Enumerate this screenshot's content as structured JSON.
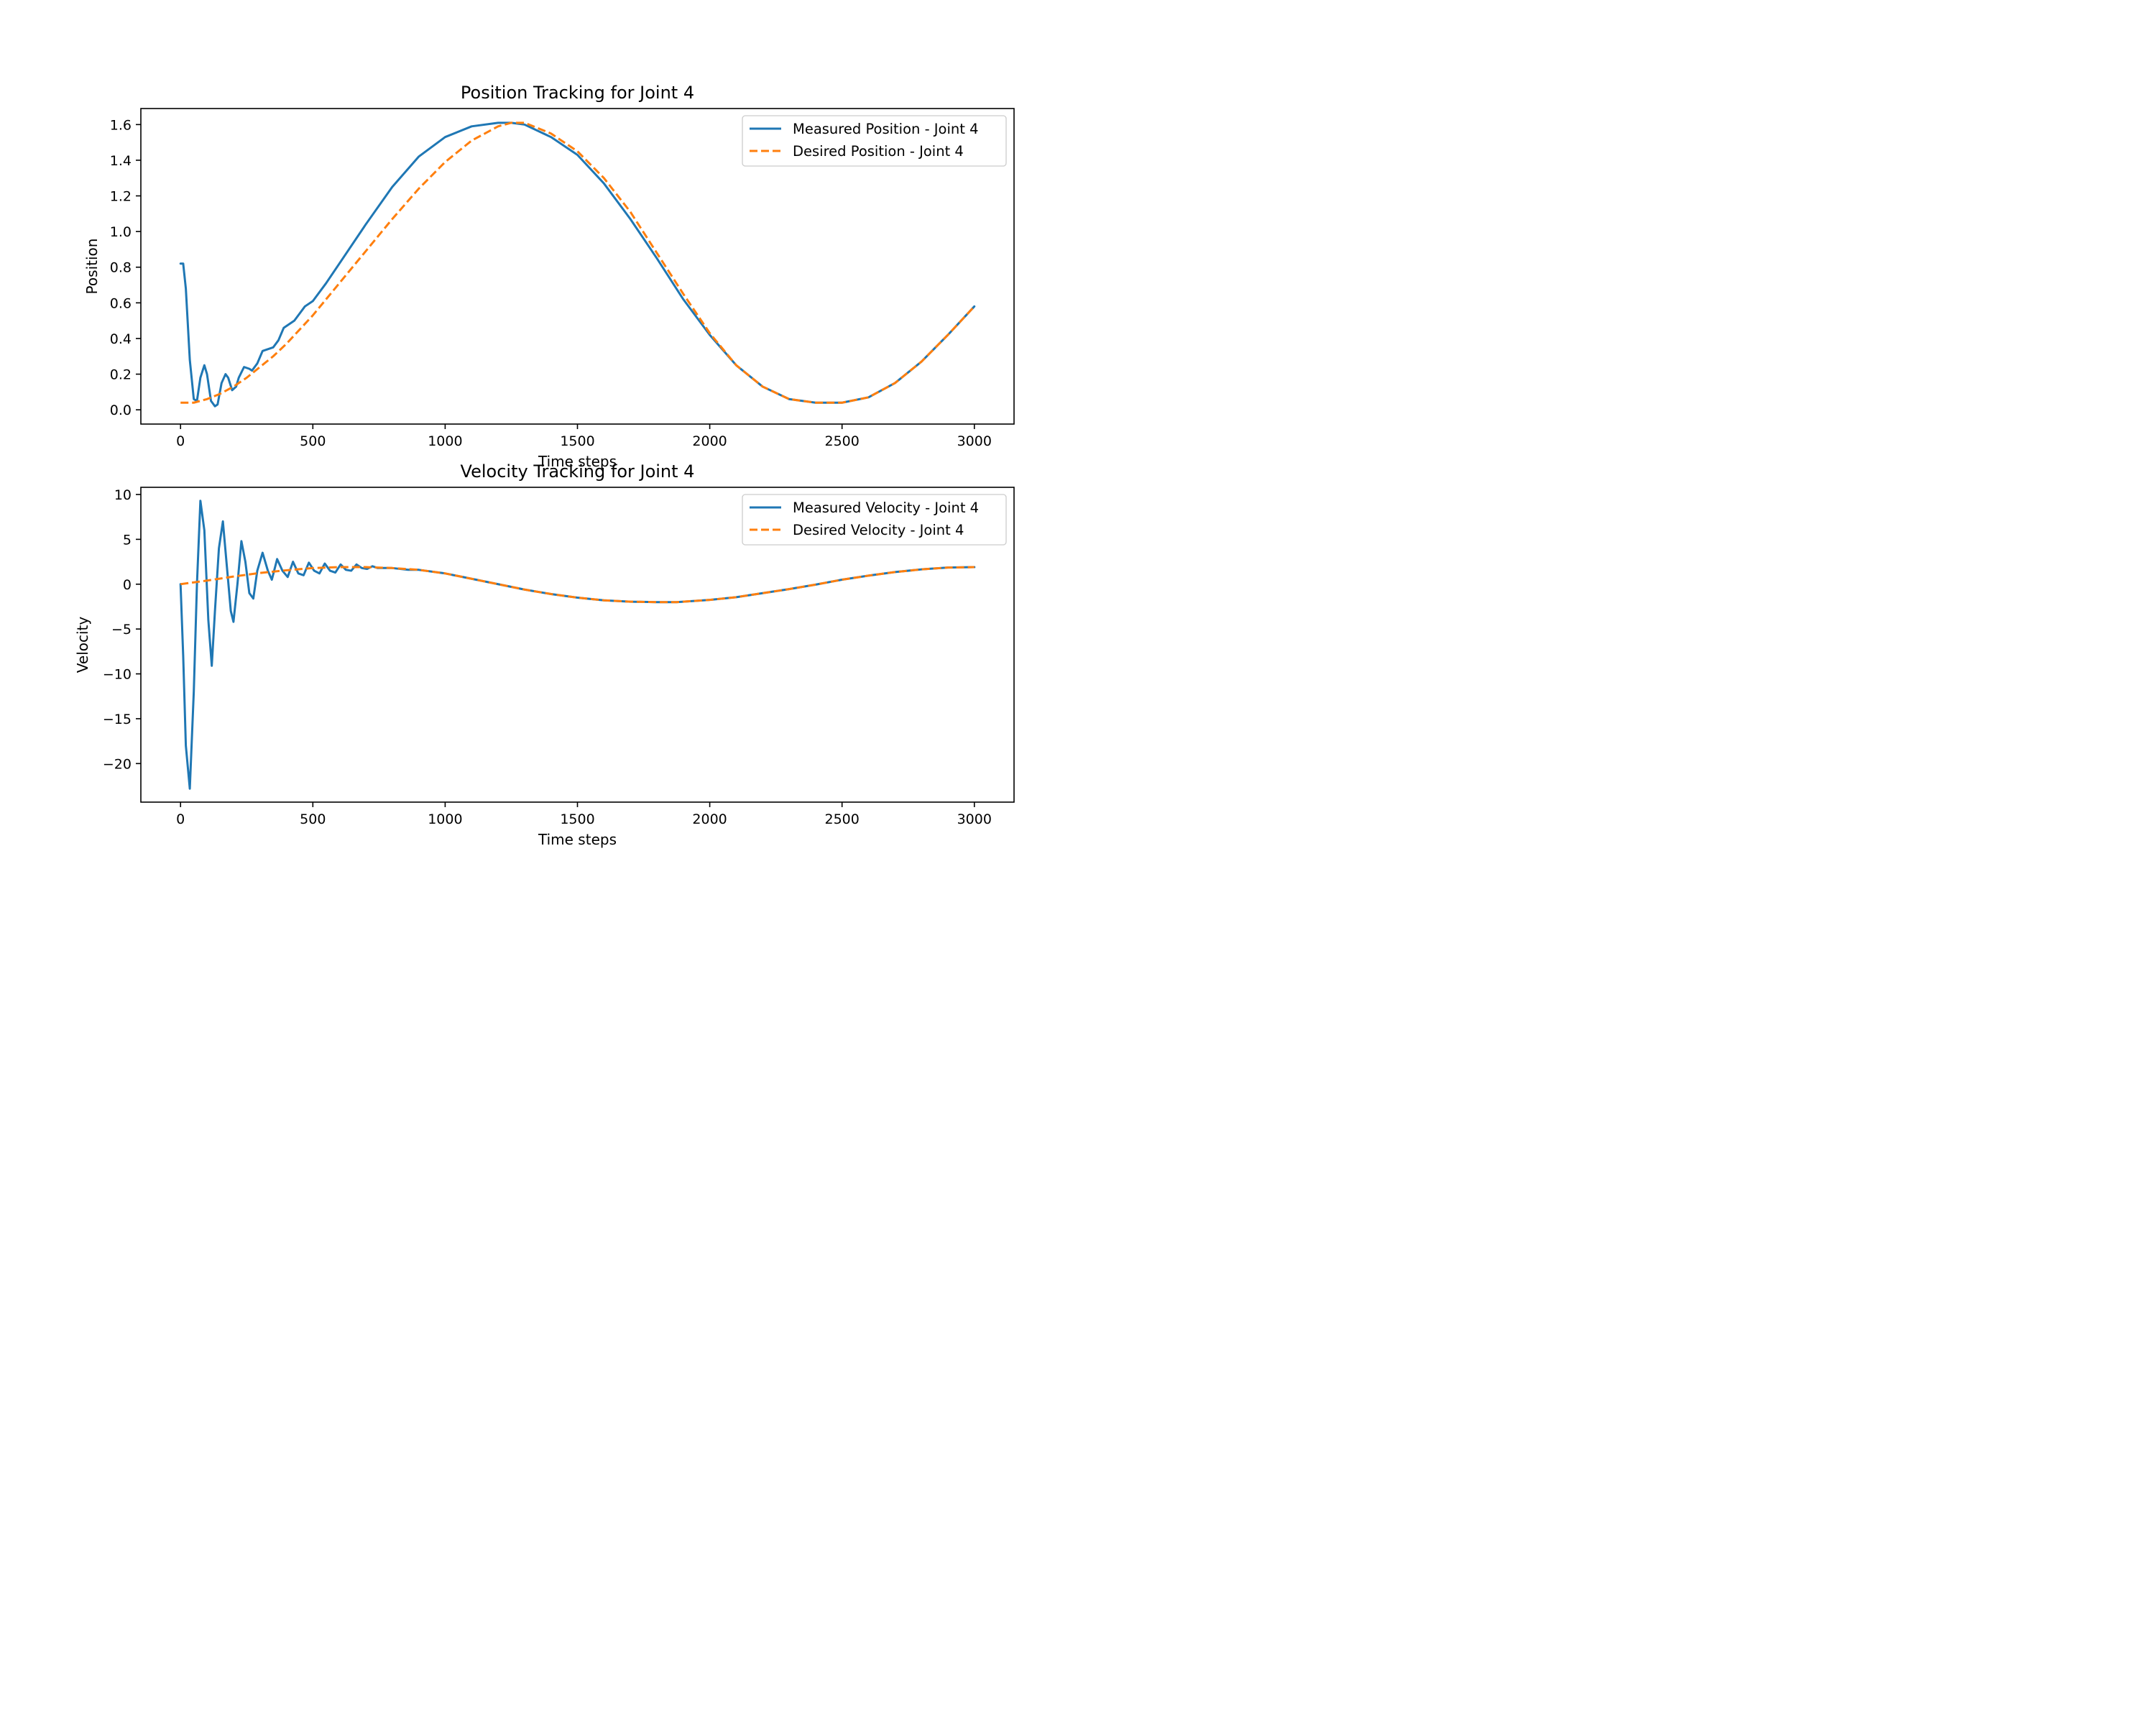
{
  "chart_data": [
    {
      "type": "line",
      "title": "Position Tracking for Joint 4",
      "xlabel": "Time steps",
      "ylabel": "Position",
      "xlim": [
        -150,
        3150
      ],
      "ylim": [
        -0.08,
        1.69
      ],
      "xticks": [
        0,
        500,
        1000,
        1500,
        2000,
        2500,
        3000
      ],
      "xtick_labels": [
        "0",
        "500",
        "1000",
        "1500",
        "2000",
        "2500",
        "3000"
      ],
      "yticks": [
        0.0,
        0.2,
        0.4,
        0.6,
        0.8,
        1.0,
        1.2,
        1.4,
        1.6
      ],
      "ytick_labels": [
        "0.0",
        "0.2",
        "0.4",
        "0.6",
        "0.8",
        "1.0",
        "1.2",
        "1.4",
        "1.6"
      ],
      "grid": false,
      "legend": "upper right",
      "series": [
        {
          "name": "Measured Position - Joint 4",
          "color": "#1f77b4",
          "style": "solid",
          "x": [
            0,
            10,
            20,
            35,
            50,
            62,
            75,
            90,
            100,
            115,
            130,
            140,
            155,
            170,
            180,
            195,
            210,
            220,
            240,
            260,
            270,
            290,
            310,
            330,
            350,
            370,
            390,
            410,
            430,
            450,
            470,
            500,
            550,
            600,
            700,
            800,
            900,
            1000,
            1100,
            1200,
            1250,
            1300,
            1400,
            1500,
            1600,
            1700,
            1800,
            1900,
            2000,
            2100,
            2200,
            2300,
            2400,
            2500,
            2600,
            2700,
            2800,
            2900,
            3000
          ],
          "y": [
            0.82,
            0.82,
            0.68,
            0.28,
            0.06,
            0.05,
            0.18,
            0.25,
            0.2,
            0.05,
            0.02,
            0.03,
            0.15,
            0.2,
            0.18,
            0.11,
            0.13,
            0.18,
            0.24,
            0.23,
            0.22,
            0.26,
            0.33,
            0.34,
            0.35,
            0.39,
            0.46,
            0.48,
            0.5,
            0.54,
            0.58,
            0.61,
            0.71,
            0.82,
            1.04,
            1.25,
            1.42,
            1.53,
            1.59,
            1.61,
            1.61,
            1.6,
            1.53,
            1.43,
            1.27,
            1.07,
            0.85,
            0.62,
            0.42,
            0.25,
            0.13,
            0.06,
            0.04,
            0.04,
            0.07,
            0.15,
            0.27,
            0.42,
            0.58
          ]
        },
        {
          "name": "Desired Position - Joint 4",
          "color": "#ff7f0e",
          "style": "dashed",
          "x": [
            0,
            50,
            100,
            150,
            200,
            250,
            300,
            350,
            400,
            450,
            500,
            600,
            700,
            800,
            900,
            1000,
            1100,
            1200,
            1250,
            1300,
            1400,
            1500,
            1600,
            1700,
            1800,
            1900,
            2000,
            2100,
            2200,
            2300,
            2400,
            2500,
            2600,
            2700,
            2800,
            2900,
            3000
          ],
          "y": [
            0.04,
            0.04,
            0.06,
            0.09,
            0.13,
            0.18,
            0.24,
            0.3,
            0.37,
            0.45,
            0.53,
            0.71,
            0.89,
            1.07,
            1.24,
            1.39,
            1.51,
            1.59,
            1.61,
            1.61,
            1.55,
            1.45,
            1.3,
            1.11,
            0.88,
            0.65,
            0.43,
            0.25,
            0.13,
            0.06,
            0.04,
            0.04,
            0.07,
            0.15,
            0.27,
            0.42,
            0.58
          ]
        }
      ]
    },
    {
      "type": "line",
      "title": "Velocity Tracking for Joint 4",
      "xlabel": "Time steps",
      "ylabel": "Velocity",
      "xlim": [
        -150,
        3150
      ],
      "ylim": [
        -24.3,
        10.8
      ],
      "xticks": [
        0,
        500,
        1000,
        1500,
        2000,
        2500,
        3000
      ],
      "xtick_labels": [
        "0",
        "500",
        "1000",
        "1500",
        "2000",
        "2500",
        "3000"
      ],
      "yticks": [
        -20,
        -15,
        -10,
        -5,
        0,
        5,
        10
      ],
      "ytick_labels": [
        "−20",
        "−15",
        "−10",
        "−5",
        "0",
        "5",
        "10"
      ],
      "grid": false,
      "legend": "upper right",
      "series": [
        {
          "name": "Measured Velocity - Joint 4",
          "color": "#1f77b4",
          "style": "solid",
          "x": [
            0,
            10,
            20,
            35,
            50,
            62,
            75,
            90,
            105,
            118,
            130,
            145,
            160,
            175,
            190,
            200,
            215,
            230,
            245,
            260,
            275,
            290,
            310,
            330,
            345,
            365,
            385,
            405,
            425,
            445,
            465,
            485,
            505,
            525,
            545,
            565,
            585,
            605,
            625,
            645,
            665,
            685,
            705,
            725,
            745,
            770,
            800,
            830,
            860,
            900,
            1000,
            1100,
            1200,
            1300,
            1400,
            1500,
            1600,
            1700,
            1800,
            1875,
            1900,
            2000,
            2100,
            2200,
            2300,
            2400,
            2500,
            2600,
            2700,
            2800,
            2900,
            3000
          ],
          "y": [
            0,
            -8,
            -18,
            -22.8,
            -12,
            0,
            9.3,
            6,
            -4,
            -9.1,
            -3,
            4,
            7,
            2,
            -3,
            -4.2,
            0,
            4.8,
            2.5,
            -1,
            -1.6,
            1.5,
            3.5,
            1.5,
            0.5,
            2.8,
            1.5,
            0.8,
            2.5,
            1.2,
            1.0,
            2.4,
            1.5,
            1.2,
            2.3,
            1.5,
            1.3,
            2.2,
            1.6,
            1.5,
            2.2,
            1.8,
            1.7,
            2.0,
            1.8,
            1.8,
            1.8,
            1.7,
            1.6,
            1.6,
            1.2,
            0.6,
            0.0,
            -0.6,
            -1.1,
            -1.5,
            -1.8,
            -1.95,
            -2.0,
            -2.0,
            -1.95,
            -1.75,
            -1.45,
            -1.0,
            -0.55,
            -0.05,
            0.5,
            0.95,
            1.35,
            1.65,
            1.85,
            1.9
          ]
        },
        {
          "name": "Desired Velocity - Joint 4",
          "color": "#ff7f0e",
          "style": "dashed",
          "x": [
            0,
            100,
            200,
            300,
            400,
            500,
            600,
            700,
            800,
            900,
            1000,
            1100,
            1200,
            1300,
            1400,
            1500,
            1600,
            1700,
            1800,
            1875,
            1900,
            2000,
            2100,
            2200,
            2300,
            2400,
            2500,
            2600,
            2700,
            2800,
            2900,
            3000
          ],
          "y": [
            0,
            0.4,
            0.85,
            1.25,
            1.55,
            1.8,
            1.9,
            1.9,
            1.8,
            1.6,
            1.2,
            0.6,
            0.0,
            -0.6,
            -1.1,
            -1.5,
            -1.8,
            -1.95,
            -2.0,
            -2.0,
            -1.95,
            -1.75,
            -1.45,
            -1.0,
            -0.55,
            -0.05,
            0.5,
            0.95,
            1.35,
            1.65,
            1.85,
            1.9
          ]
        }
      ]
    }
  ]
}
